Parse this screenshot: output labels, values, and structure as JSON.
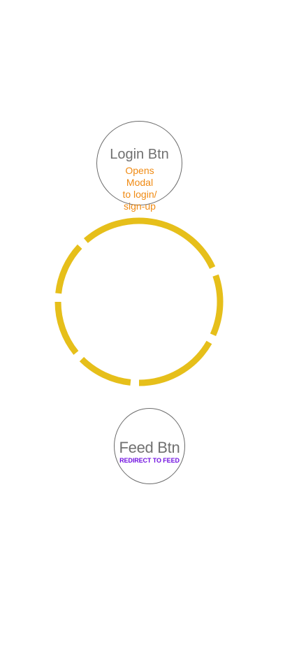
{
  "login": {
    "title": "Login Btn",
    "note_lines": [
      "Opens",
      "Modal",
      "to login/",
      "sign-up"
    ],
    "note_color": "#f08a12"
  },
  "feed": {
    "title": "Feed Btn",
    "note": "REDIRECT TO FEED",
    "note_color": "#7010e0"
  },
  "ring": {
    "color": "#e6bf1a",
    "segments": 6
  }
}
